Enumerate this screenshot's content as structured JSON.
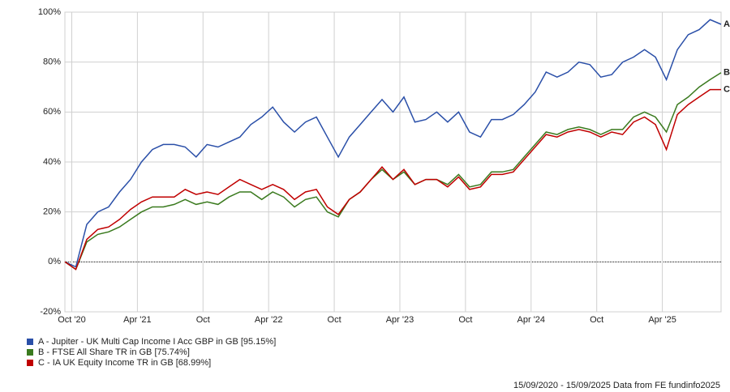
{
  "chart_data": {
    "type": "line",
    "x": [
      "2020-09",
      "2020-10",
      "2020-11",
      "2020-12",
      "2021-01",
      "2021-02",
      "2021-03",
      "2021-04",
      "2021-05",
      "2021-06",
      "2021-07",
      "2021-08",
      "2021-09",
      "2021-10",
      "2021-11",
      "2021-12",
      "2022-01",
      "2022-02",
      "2022-03",
      "2022-04",
      "2022-05",
      "2022-06",
      "2022-07",
      "2022-08",
      "2022-09",
      "2022-10",
      "2022-11",
      "2022-12",
      "2023-01",
      "2023-02",
      "2023-03",
      "2023-04",
      "2023-05",
      "2023-06",
      "2023-07",
      "2023-08",
      "2023-09",
      "2023-10",
      "2023-11",
      "2023-12",
      "2024-01",
      "2024-02",
      "2024-03",
      "2024-04",
      "2024-05",
      "2024-06",
      "2024-07",
      "2024-08",
      "2024-09",
      "2024-10",
      "2024-11",
      "2024-12",
      "2025-01",
      "2025-02",
      "2025-03",
      "2025-04",
      "2025-05",
      "2025-06",
      "2025-07",
      "2025-08",
      "2025-09"
    ],
    "series": [
      {
        "name": "A - Jupiter - UK Multi Cap Income I Acc GBP in GB [95.15%]",
        "label": "A",
        "color": "#2a4fa8",
        "values": [
          0,
          -2,
          15,
          20,
          22,
          28,
          33,
          40,
          45,
          47,
          47,
          46,
          42,
          47,
          46,
          48,
          50,
          55,
          58,
          62,
          56,
          52,
          56,
          58,
          50,
          42,
          50,
          55,
          60,
          65,
          60,
          66,
          56,
          57,
          60,
          56,
          60,
          52,
          50,
          57,
          57,
          59,
          63,
          68,
          76,
          74,
          76,
          80,
          79,
          74,
          75,
          80,
          82,
          85,
          82,
          73,
          85,
          91,
          93,
          97,
          95.15
        ]
      },
      {
        "name": "B - FTSE All Share TR in GB [75.74%]",
        "label": "B",
        "color": "#3a7a1e",
        "values": [
          0,
          -3,
          8,
          11,
          12,
          14,
          17,
          20,
          22,
          22,
          23,
          25,
          23,
          24,
          23,
          26,
          28,
          28,
          25,
          28,
          26,
          22,
          25,
          26,
          20,
          18,
          25,
          28,
          33,
          37,
          33,
          36,
          31,
          33,
          33,
          31,
          35,
          30,
          31,
          36,
          36,
          37,
          42,
          47,
          52,
          51,
          53,
          54,
          53,
          51,
          53,
          53,
          58,
          60,
          58,
          52,
          63,
          66,
          70,
          73,
          75.74
        ]
      },
      {
        "name": "C - IA UK Equity Income TR in GB [68.99%]",
        "label": "C",
        "color": "#c00000",
        "values": [
          0,
          -3,
          9,
          13,
          14,
          17,
          21,
          24,
          26,
          26,
          26,
          29,
          27,
          28,
          27,
          30,
          33,
          31,
          29,
          31,
          29,
          25,
          28,
          29,
          22,
          19,
          25,
          28,
          33,
          38,
          33,
          37,
          31,
          33,
          33,
          30,
          34,
          29,
          30,
          35,
          35,
          36,
          41,
          46,
          51,
          50,
          52,
          53,
          52,
          50,
          52,
          51,
          56,
          58,
          55,
          45,
          59,
          63,
          66,
          69,
          68.99
        ]
      }
    ],
    "xlim": [
      "2020-09",
      "2025-09"
    ],
    "xticks": [
      {
        "value": "2020-10",
        "label": "Oct '20"
      },
      {
        "value": "2021-04",
        "label": "Apr '21"
      },
      {
        "value": "2021-10",
        "label": "Oct"
      },
      {
        "value": "2022-04",
        "label": "Apr '22"
      },
      {
        "value": "2022-10",
        "label": "Oct"
      },
      {
        "value": "2023-04",
        "label": "Apr '23"
      },
      {
        "value": "2023-10",
        "label": "Oct"
      },
      {
        "value": "2024-04",
        "label": "Apr '24"
      },
      {
        "value": "2024-10",
        "label": "Oct"
      },
      {
        "value": "2025-04",
        "label": "Apr '25"
      }
    ],
    "ylim": [
      -20,
      100
    ],
    "yticks": [
      {
        "value": -20,
        "label": "-20%"
      },
      {
        "value": 0,
        "label": "0%"
      },
      {
        "value": 20,
        "label": "20%"
      },
      {
        "value": 40,
        "label": "40%"
      },
      {
        "value": 60,
        "label": "60%"
      },
      {
        "value": 80,
        "label": "80%"
      },
      {
        "value": 100,
        "label": "100%"
      }
    ],
    "grid": true,
    "footnote": "15/09/2020 - 15/09/2025 Data from FE fundinfo2025"
  }
}
